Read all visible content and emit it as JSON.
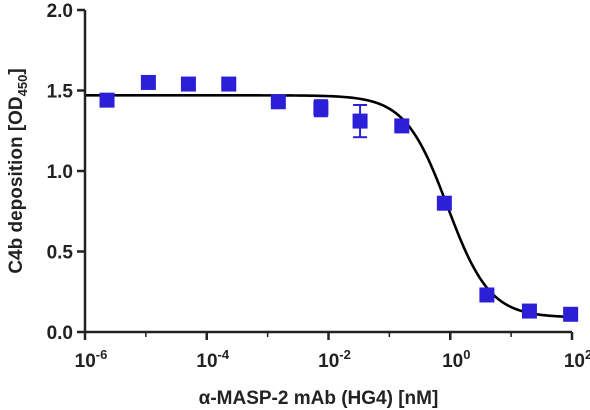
{
  "chart_data": {
    "type": "scatter",
    "xlabel": "α-MASP-2 mAb (HG4)  [nM]",
    "ylabel_main": "C4b deposition [OD",
    "ylabel_sub": "450",
    "ylabel_end": "]",
    "x_scale": "log",
    "xlim": [
      1e-06,
      100
    ],
    "ylim": [
      0.0,
      2.0
    ],
    "x_tick_values": [
      1e-06,
      0.0001,
      0.01,
      1,
      100
    ],
    "x_tick_labels": [
      {
        "base": "10",
        "exp": "-6"
      },
      {
        "base": "10",
        "exp": "-4"
      },
      {
        "base": "10",
        "exp": "-2"
      },
      {
        "base": "10",
        "exp": "0"
      },
      {
        "base": "10",
        "exp": "2"
      }
    ],
    "y_tick_values": [
      0.0,
      0.5,
      1.0,
      1.5,
      2.0
    ],
    "y_tick_labels": [
      "0.0",
      "0.5",
      "1.0",
      "1.5",
      "2.0"
    ],
    "grid": false,
    "marker_color": "#2b20d8",
    "curve_color": "#000000",
    "series": [
      {
        "x": [
          2.3e-06,
          1.1e-05,
          5e-05,
          0.00023,
          0.0015,
          0.0075,
          0.033,
          0.16,
          0.8,
          4.0,
          20.0,
          95.0
        ],
        "y": [
          1.44,
          1.55,
          1.54,
          1.54,
          1.43,
          1.39,
          1.31,
          1.28,
          0.8,
          0.23,
          0.13,
          0.11
        ],
        "err": [
          0.02,
          0.02,
          0.03,
          0.02,
          0.02,
          0.05,
          0.1,
          0.02,
          0.02,
          0.02,
          0.02,
          0.02
        ]
      }
    ],
    "fit": {
      "model": "four-parameter logistic",
      "top": 1.47,
      "bottom": 0.09,
      "ic50": 0.9,
      "hill": 1.25
    }
  }
}
